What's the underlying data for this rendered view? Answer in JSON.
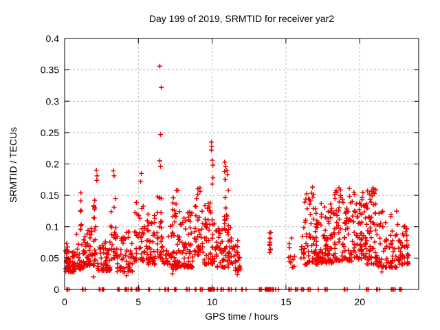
{
  "chart_data": {
    "type": "scatter",
    "title": "Day 199 of 2019, SRMTID for receiver yar2",
    "xlabel": "GPS time / hours",
    "ylabel": "SRMTID / TECUs",
    "xlim": [
      0,
      24
    ],
    "ylim": [
      0,
      0.4
    ],
    "xticks": [
      [
        0,
        "0"
      ],
      [
        5,
        "5"
      ],
      [
        10,
        "10"
      ],
      [
        15,
        "15"
      ],
      [
        20,
        "20"
      ]
    ],
    "yticks": [
      [
        0,
        "0"
      ],
      [
        0.05,
        "0.05"
      ],
      [
        0.1,
        "0.1"
      ],
      [
        0.15,
        "0.15"
      ],
      [
        0.2,
        "0.2"
      ],
      [
        0.25,
        "0.25"
      ],
      [
        0.3,
        "0.3"
      ],
      [
        0.35,
        "0.35"
      ],
      [
        0.4,
        "0.4"
      ]
    ],
    "grid": true,
    "legend": "none",
    "marker": {
      "glyph": "plus",
      "size": 7,
      "color": "#ee0000"
    },
    "grid_color": "#b9b9b9",
    "axis_color": "#000000",
    "outlier_points": [
      [
        6.45,
        0.356
      ],
      [
        6.55,
        0.322
      ],
      [
        6.5,
        0.247
      ],
      [
        6.45,
        0.205
      ],
      [
        6.5,
        0.196
      ],
      [
        9.95,
        0.235
      ],
      [
        9.97,
        0.228
      ],
      [
        9.95,
        0.222
      ],
      [
        10.0,
        0.206
      ],
      [
        10.05,
        0.198
      ],
      [
        10.05,
        0.178
      ],
      [
        10.0,
        0.168
      ],
      [
        10.85,
        0.203
      ],
      [
        10.9,
        0.196
      ],
      [
        10.85,
        0.188
      ],
      [
        10.9,
        0.175
      ],
      [
        11.0,
        0.19
      ],
      [
        11.05,
        0.183
      ],
      [
        11.1,
        0.158
      ],
      [
        2.15,
        0.19
      ],
      [
        2.2,
        0.181
      ],
      [
        2.18,
        0.174
      ],
      [
        3.3,
        0.189
      ],
      [
        3.35,
        0.181
      ],
      [
        5.2,
        0.185
      ],
      [
        5.15,
        0.172
      ],
      [
        1.1,
        0.154
      ],
      [
        1.1,
        0.141
      ],
      [
        1.12,
        0.126
      ],
      [
        16.8,
        0.163
      ],
      [
        18.6,
        0.162
      ],
      [
        19.3,
        0.161
      ],
      [
        20.9,
        0.162
      ],
      [
        20.95,
        0.155
      ],
      [
        1.95,
        0.02
      ],
      [
        4.2,
        0.022
      ],
      [
        7.3,
        0.025
      ],
      [
        11.7,
        0.024
      ],
      [
        21.5,
        0.028
      ],
      [
        13.9,
        0.09
      ],
      [
        13.92,
        0.082
      ],
      [
        13.88,
        0.07
      ],
      [
        13.95,
        0.063
      ],
      [
        23.2,
        0.078
      ],
      [
        23.25,
        0.042
      ]
    ],
    "clusters": [
      {
        "x0": 0.05,
        "x1": 0.7,
        "y0": 0.028,
        "y1": 0.062,
        "n": 60
      },
      {
        "x0": 0.12,
        "x1": 0.32,
        "y0": 0.035,
        "y1": 0.075,
        "n": 14
      },
      {
        "x0": 0.7,
        "x1": 1.35,
        "y0": 0.032,
        "y1": 0.09,
        "n": 30
      },
      {
        "x0": 1.05,
        "x1": 1.15,
        "y0": 0.095,
        "y1": 0.155,
        "n": 5
      },
      {
        "x0": 1.35,
        "x1": 2.15,
        "y0": 0.038,
        "y1": 0.098,
        "n": 50
      },
      {
        "x0": 1.95,
        "x1": 2.2,
        "y0": 0.1,
        "y1": 0.165,
        "n": 8
      },
      {
        "x0": 2.2,
        "x1": 3.1,
        "y0": 0.03,
        "y1": 0.078,
        "n": 55
      },
      {
        "x0": 3.1,
        "x1": 3.5,
        "y0": 0.048,
        "y1": 0.15,
        "n": 22
      },
      {
        "x0": 3.5,
        "x1": 4.65,
        "y0": 0.028,
        "y1": 0.092,
        "n": 60
      },
      {
        "x0": 4.65,
        "x1": 5.45,
        "y0": 0.045,
        "y1": 0.14,
        "n": 40
      },
      {
        "x0": 5.5,
        "x1": 6.15,
        "y0": 0.04,
        "y1": 0.125,
        "n": 48
      },
      {
        "x0": 6.25,
        "x1": 6.6,
        "y0": 0.05,
        "y1": 0.175,
        "n": 26
      },
      {
        "x0": 6.6,
        "x1": 7.15,
        "y0": 0.04,
        "y1": 0.085,
        "n": 22
      },
      {
        "x0": 7.15,
        "x1": 7.75,
        "y0": 0.032,
        "y1": 0.158,
        "n": 50
      },
      {
        "x0": 7.75,
        "x1": 8.7,
        "y0": 0.035,
        "y1": 0.125,
        "n": 65
      },
      {
        "x0": 8.75,
        "x1": 9.4,
        "y0": 0.055,
        "y1": 0.168,
        "n": 40
      },
      {
        "x0": 9.45,
        "x1": 10.2,
        "y0": 0.04,
        "y1": 0.14,
        "n": 50
      },
      {
        "x0": 10.2,
        "x1": 11.4,
        "y0": 0.035,
        "y1": 0.105,
        "n": 70
      },
      {
        "x0": 10.8,
        "x1": 11.1,
        "y0": 0.11,
        "y1": 0.185,
        "n": 10
      },
      {
        "x0": 11.4,
        "x1": 11.95,
        "y0": 0.03,
        "y1": 0.078,
        "n": 26
      },
      {
        "x0": 13.85,
        "x1": 14.0,
        "y0": 0.058,
        "y1": 0.092,
        "n": 6
      },
      {
        "x0": 15.15,
        "x1": 15.6,
        "y0": 0.035,
        "y1": 0.095,
        "n": 13
      },
      {
        "x0": 16.0,
        "x1": 16.25,
        "y0": 0.05,
        "y1": 0.1,
        "n": 10
      },
      {
        "x0": 16.25,
        "x1": 17.15,
        "y0": 0.04,
        "y1": 0.16,
        "n": 65
      },
      {
        "x0": 17.15,
        "x1": 18.25,
        "y0": 0.042,
        "y1": 0.138,
        "n": 80
      },
      {
        "x0": 18.25,
        "x1": 19.55,
        "y0": 0.045,
        "y1": 0.162,
        "n": 85
      },
      {
        "x0": 19.55,
        "x1": 20.45,
        "y0": 0.048,
        "y1": 0.155,
        "n": 70
      },
      {
        "x0": 20.45,
        "x1": 21.15,
        "y0": 0.04,
        "y1": 0.168,
        "n": 55
      },
      {
        "x0": 21.15,
        "x1": 22.55,
        "y0": 0.035,
        "y1": 0.125,
        "n": 75
      },
      {
        "x0": 22.55,
        "x1": 23.35,
        "y0": 0.04,
        "y1": 0.108,
        "n": 45
      }
    ],
    "zero_x": [
      0.15,
      0.2,
      0.3,
      1.2,
      1.25,
      1.4,
      2.35,
      2.4,
      2.55,
      2.6,
      2.65,
      3.6,
      3.65,
      3.7,
      4.1,
      4.15,
      4.2,
      4.3,
      4.5,
      4.55,
      4.85,
      4.9,
      5.0,
      5.05,
      5.7,
      5.75,
      6.45,
      6.8,
      6.85,
      7.0,
      7.05,
      7.45,
      7.5,
      7.55,
      8.25,
      8.3,
      8.45,
      8.85,
      8.9,
      9.2,
      9.25,
      9.35,
      9.75,
      9.8,
      9.85,
      9.9,
      9.95,
      10.0,
      10.1,
      10.15,
      10.35,
      10.6,
      10.65,
      10.75,
      11.1,
      11.15,
      11.3,
      11.6,
      12.0,
      12.05,
      12.3,
      13.2,
      13.25,
      13.35,
      13.6,
      13.65,
      13.7,
      13.75,
      13.8,
      13.85,
      13.9,
      13.95,
      14.0,
      14.1,
      14.15,
      14.3,
      14.5,
      15.2,
      15.25,
      15.35,
      15.65,
      15.7,
      15.8,
      16.05,
      16.1,
      16.2,
      16.5,
      16.55,
      16.65,
      17.2,
      17.65,
      17.7,
      17.8,
      18.95,
      19.0,
      19.15,
      20.45,
      20.5,
      20.6,
      21.15,
      21.2,
      21.35,
      22.15,
      22.2,
      22.3,
      22.4,
      22.7,
      22.75,
      22.85
    ]
  }
}
